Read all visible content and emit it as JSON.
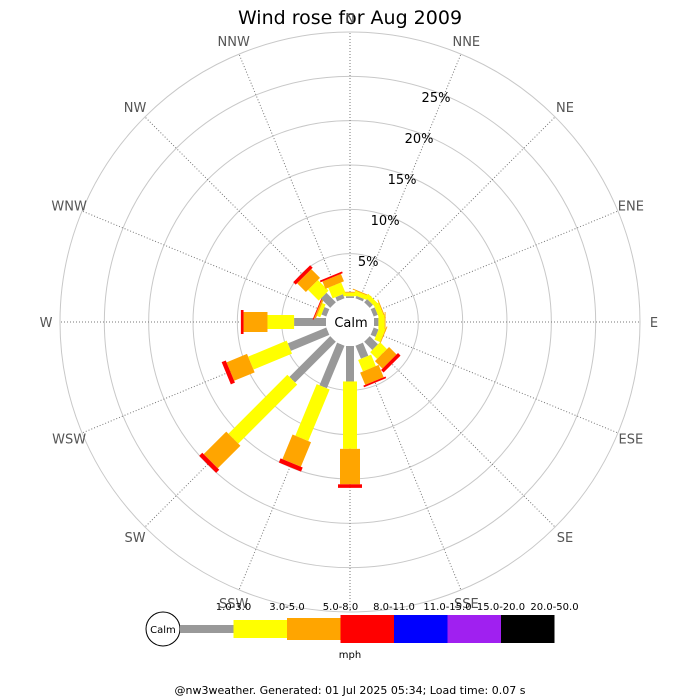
{
  "chart_data": {
    "type": "windrose",
    "title": "Wind rose for Aug 2009",
    "directions": [
      "N",
      "NNE",
      "NE",
      "ENE",
      "E",
      "ESE",
      "SE",
      "SSE",
      "S",
      "SSW",
      "SW",
      "WSW",
      "W",
      "WNW",
      "NW",
      "NNW"
    ],
    "ring_labels": [
      "5%",
      "10%",
      "15%",
      "20%",
      "25%"
    ],
    "rmax_percent": 30,
    "calm_label": "Calm",
    "speed_bins": [
      {
        "label": "1.0-3.0",
        "color": "#999999"
      },
      {
        "label": "3.0-5.0",
        "color": "#ffff00"
      },
      {
        "label": "5.0-8.0",
        "color": "#ffa500"
      },
      {
        "label": "8.0-11.0",
        "color": "#ff0000"
      },
      {
        "label": "11.0-15.0",
        "color": "#0000ff"
      },
      {
        "label": "15.0-20.0",
        "color": "#a020f0"
      },
      {
        "label": "20.0-50.0",
        "color": "#000000"
      }
    ],
    "units": "mph",
    "cumulative_percent": {
      "N": [
        0.2,
        0.6,
        0.7,
        0.7
      ],
      "NNE": [
        0.3,
        0.8,
        0.9,
        0.9
      ],
      "NE": [
        0.5,
        1.0,
        1.0,
        1.0
      ],
      "ENE": [
        0.5,
        1.1,
        1.2,
        1.2
      ],
      "E": [
        0.5,
        1.2,
        1.3,
        1.3
      ],
      "ESE": [
        0.6,
        1.3,
        1.4,
        1.4
      ],
      "SE": [
        1.3,
        2.4,
        3.6,
        4.0
      ],
      "SSE": [
        1.6,
        3.0,
        4.5,
        4.7
      ],
      "S": [
        4.0,
        11.6,
        15.6,
        16.0
      ],
      "SSW": [
        5.2,
        11.5,
        14.5,
        15.0
      ],
      "SW": [
        6.5,
        15.9,
        19.5,
        20.0
      ],
      "WSW": [
        4.7,
        9.4,
        11.9,
        12.4
      ],
      "W": [
        3.6,
        6.6,
        9.3,
        9.6
      ],
      "WNW": [
        0.6,
        1.0,
        1.2,
        1.3
      ],
      "NW": [
        1.5,
        3.2,
        4.6,
        5.0
      ],
      "NNW": [
        0.5,
        1.8,
        2.7,
        2.9
      ]
    }
  },
  "footer": "@nw3weather. Generated: 01 Jul 2025 05:34; Load time: 0.07 s"
}
